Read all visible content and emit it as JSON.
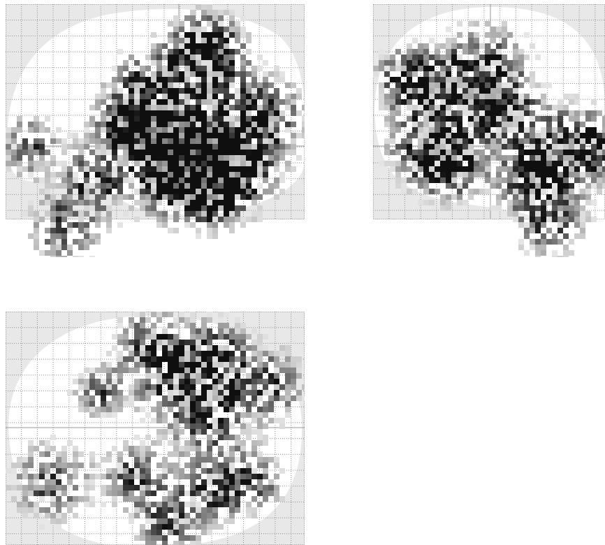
{
  "figure": {
    "type": "glass-brain maximum intensity projection",
    "colormap": "grayscale",
    "background_color": "#ffffff",
    "outline_fill": "#e8e8e8",
    "grid_color": "#8a8a8a",
    "crosshair_color": "#9a9a9a",
    "panels": [
      {
        "id": "sagittal",
        "view": "side",
        "grid": true
      },
      {
        "id": "coronal",
        "view": "back",
        "grid": true
      },
      {
        "id": "axial",
        "view": "top",
        "grid": true
      }
    ]
  }
}
